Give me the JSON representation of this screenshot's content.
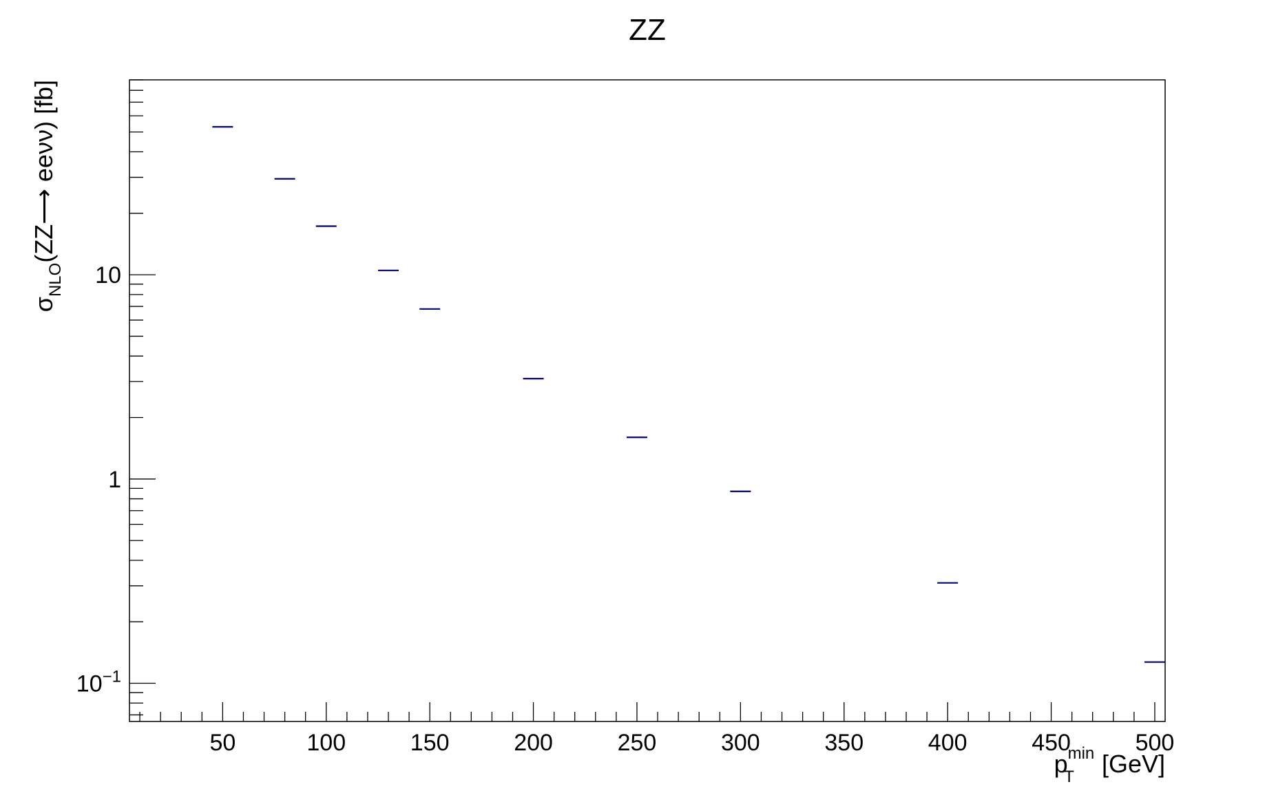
{
  "chart_data": {
    "type": "scatter",
    "title": "ZZ",
    "xlabel": {
      "main": "p",
      "subscript": "T",
      "superscript": "min",
      "unit": "[GeV]"
    },
    "ylabel": {
      "prefix": "σ",
      "subscript": "NLO",
      "process": "(ZZ⟶ eeνν)",
      "unit": "[fb]"
    },
    "xlim": [
      5,
      505
    ],
    "ylim": [
      0.065,
      90
    ],
    "yscale": "log",
    "x_ticks": [
      "50",
      "100",
      "150",
      "200",
      "250",
      "300",
      "350",
      "400",
      "450",
      "500"
    ],
    "y_ticks": [
      {
        "value": 0.1,
        "base": "10",
        "exponent": "−1"
      },
      {
        "value": 1,
        "label": "1"
      },
      {
        "value": 10,
        "label": "10"
      }
    ],
    "grid": false,
    "marker": "horizontal-bin-bar",
    "color": "#00007f",
    "series": [
      {
        "x": [
          50,
          80,
          100,
          130,
          150,
          200,
          250,
          300,
          400,
          500
        ],
        "y": [
          53,
          29.5,
          17.3,
          10.5,
          6.8,
          3.1,
          1.6,
          0.87,
          0.31,
          0.127
        ]
      }
    ]
  }
}
